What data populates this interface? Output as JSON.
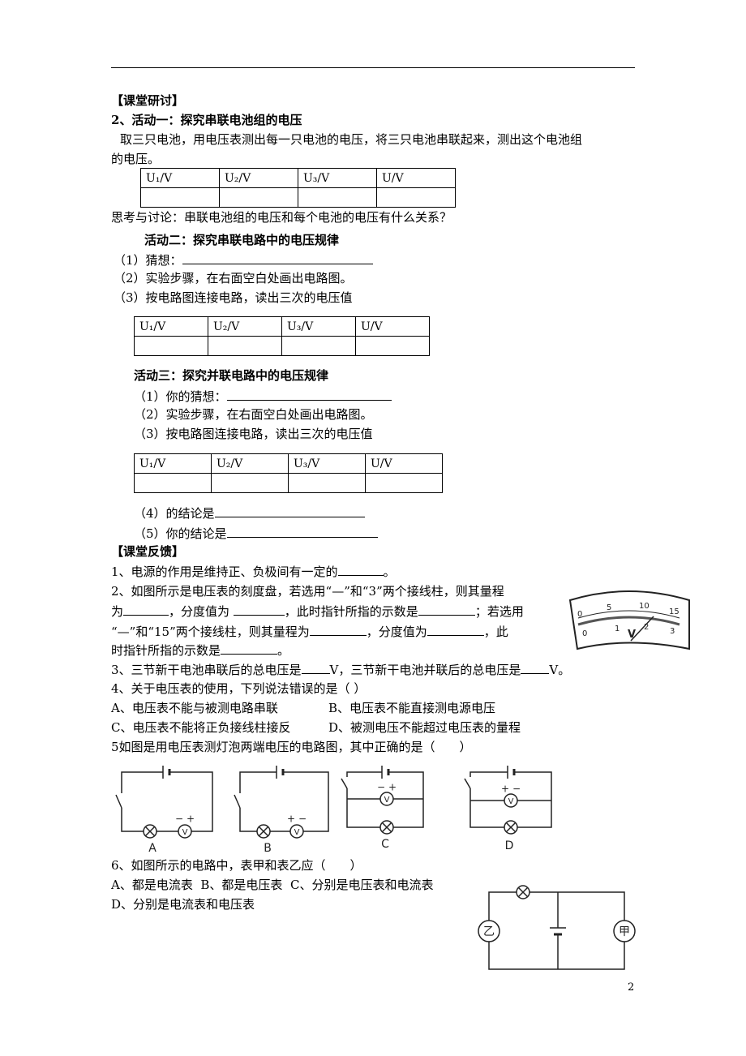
{
  "section1": {
    "heading": "【课堂研讨】"
  },
  "activity1": {
    "title": "2、活动一：探究串联电池组的电压",
    "text": [
      "取三只电池，用电压表测出每一只电池的电压，将三只电池串联起来，测出这个电池组",
      "的电压。"
    ],
    "table": {
      "headers": [
        "U₁/V",
        "U₂/V",
        "U₃/V",
        "U/V"
      ]
    },
    "discussion": "思考与讨论：串联电池组的电压和每个电池的电压有什么关系？"
  },
  "activity2": {
    "title": "活动二：探究串联电路中的电压规律",
    "steps": [
      "（1）猜想：",
      "（2）实验步骤，在右面空白处画出电路图。",
      "（3）按电路图连接电路，读出三次的电压值"
    ],
    "table": {
      "headers": [
        "U₁/V",
        "U₂/V",
        "U₃/V",
        "U/V"
      ]
    }
  },
  "activity3": {
    "title": "活动三：探究并联电路中的电压规律",
    "steps": [
      "（1）你的猜想：",
      "（2）实验步骤，在右面空白处画出电路图。",
      "（3）按电路图连接电路，读出三次的电压值",
      "（4）的结论是",
      "（5）你的结论是"
    ],
    "table": {
      "headers": [
        "U₁/V",
        "U₂/V",
        "U₃/V",
        "U/V"
      ]
    }
  },
  "feedback": {
    "heading": "【课堂反馈】",
    "q1": [
      "1、电源的作用是维持正、负极间有一定的",
      "。"
    ],
    "q2": [
      [
        "2、如图所示是电压表的刻度盘，若选用“—”和“3”两个接线柱，则其量程"
      ],
      [
        "为",
        "，分度值为 ",
        "，此时指针所指的示数是",
        "；若选用"
      ],
      [
        "“—”和“15”两个接线柱，则其量程为",
        "，分度值为",
        "，此"
      ],
      [
        "时指针所指的示数是",
        "。"
      ]
    ],
    "q3": [
      "3、三节新干电池串联后的总电压是",
      "V，三节新干电池并联后的总电压是",
      "V。"
    ],
    "q4": {
      "stem": "4、关于电压表的使用，下列说法错误的是（ ）",
      "options": [
        "A、电压表不能与被测电路串联",
        "B、电压表不能直接测电源电压",
        "C、电压表不能将正负接线柱接反",
        "D、被测电压不能超过电压表的量程"
      ]
    },
    "q5": {
      "stem": "5如图是用电压表测灯泡两端电压的电路图，其中正确的是（　　）",
      "labels": [
        "A",
        "B",
        "C",
        "D"
      ]
    },
    "q6": {
      "stem": "6、如图所示的电路中，表甲和表乙应（　　）",
      "options": [
        "A、都是电流表",
        "B、都是电压表",
        "C、分别是电压表和电流表",
        "D、分别是电流表和电压表"
      ],
      "meters": [
        "乙",
        "甲"
      ]
    }
  },
  "symbols": {
    "plus": "+",
    "minus": "−",
    "voltmeter": "V"
  },
  "meter_scale": {
    "upper": [
      "0",
      "5",
      "10",
      "15"
    ],
    "lower": [
      "0",
      "1",
      "2",
      "3"
    ],
    "unit": "V"
  },
  "page_number": "2"
}
